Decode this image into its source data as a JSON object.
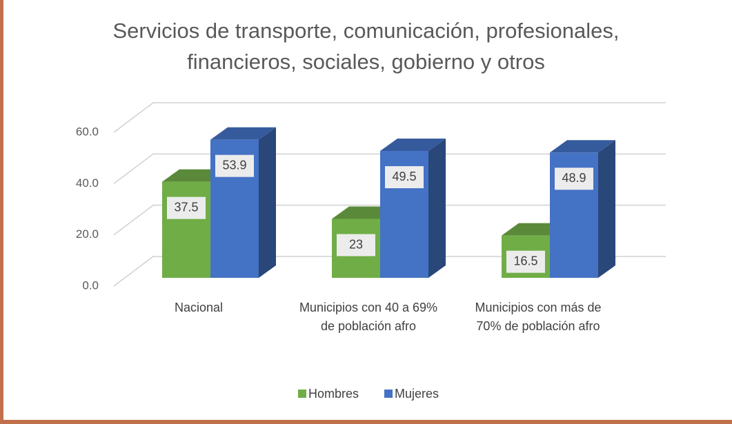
{
  "chart_data": {
    "type": "bar3d",
    "title": [
      "Servicios de transporte, comunicación, profesionales,",
      "financieros, sociales, gobierno y otros"
    ],
    "categories": [
      "Nacional",
      "Municipios con 40 a 69% de población afro",
      "Municipios con más de 70% de población afro"
    ],
    "series": [
      {
        "name": "Hombres",
        "color": "#70ad47",
        "values": [
          37.5,
          23,
          16.5
        ]
      },
      {
        "name": "Mujeres",
        "color": "#4472c4",
        "values": [
          53.9,
          49.5,
          48.9
        ]
      }
    ],
    "ylim": [
      0,
      60
    ],
    "yticks": [
      {
        "value": 0,
        "label": "0.0"
      },
      {
        "value": 20,
        "label": "20.0"
      },
      {
        "value": 40,
        "label": "40.0"
      },
      {
        "value": 60,
        "label": "60.0"
      }
    ],
    "grid": true,
    "legend": "bottom"
  }
}
